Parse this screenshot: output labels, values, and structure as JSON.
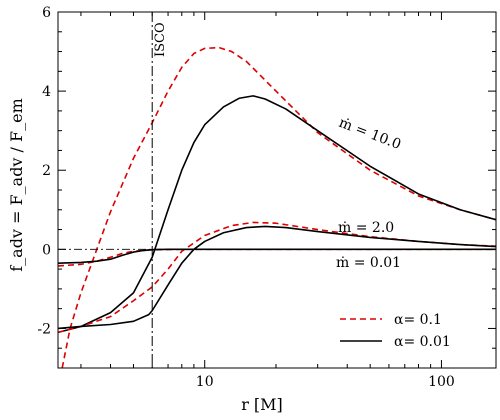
{
  "chart_data": {
    "type": "line",
    "xlabel": "r [M]",
    "ylabel": "f_adv = F_adv / F_em",
    "x_scale": "log",
    "xlim": [
      2.4,
      170
    ],
    "ylim": [
      -3,
      6
    ],
    "y_ticks": [
      -2,
      0,
      2,
      4,
      6
    ],
    "x_tick_labels": [
      {
        "value": 10,
        "label": "10"
      },
      {
        "value": 100,
        "label": "100"
      }
    ],
    "grid": false,
    "legend_position": "bottom-right",
    "legend": [
      {
        "label": "α= 0.1",
        "style": "dashed",
        "color": "#dd0000"
      },
      {
        "label": "α= 0.01",
        "style": "solid",
        "color": "#000000"
      }
    ],
    "vertical_line": {
      "x": 6,
      "label": "ISCO",
      "style": "dash-dot"
    },
    "annotations": [
      {
        "text": "ṁ = 10.0"
      },
      {
        "text": "ṁ = 2.0"
      },
      {
        "text": "ṁ = 0.01"
      }
    ],
    "series": [
      {
        "alpha": 0.1,
        "mdot": 10.0,
        "style": "dashed",
        "color": "#dd0000",
        "points": [
          [
            2.5,
            -3.0
          ],
          [
            2.7,
            -2.0
          ],
          [
            3.0,
            -1.1
          ],
          [
            3.5,
            0.0
          ],
          [
            4.0,
            0.95
          ],
          [
            5.0,
            2.3
          ],
          [
            6.0,
            3.2
          ],
          [
            7.0,
            4.0
          ],
          [
            8.0,
            4.6
          ],
          [
            9.0,
            4.95
          ],
          [
            10.0,
            5.08
          ],
          [
            11.5,
            5.1
          ],
          [
            13.0,
            5.0
          ],
          [
            15.0,
            4.75
          ],
          [
            20.0,
            4.0
          ],
          [
            30.0,
            2.95
          ],
          [
            50.0,
            2.0
          ],
          [
            80.0,
            1.35
          ],
          [
            120.0,
            1.0
          ],
          [
            170.0,
            0.75
          ]
        ]
      },
      {
        "alpha": 0.01,
        "mdot": 10.0,
        "style": "solid",
        "color": "#000000",
        "points": [
          [
            2.4,
            -2.1
          ],
          [
            3.0,
            -1.95
          ],
          [
            4.0,
            -1.6
          ],
          [
            5.0,
            -1.1
          ],
          [
            6.0,
            -0.2
          ],
          [
            7.0,
            1.0
          ],
          [
            8.0,
            2.0
          ],
          [
            9.0,
            2.7
          ],
          [
            10.0,
            3.15
          ],
          [
            12.0,
            3.6
          ],
          [
            14.0,
            3.82
          ],
          [
            16.0,
            3.88
          ],
          [
            18.0,
            3.8
          ],
          [
            22.0,
            3.55
          ],
          [
            30.0,
            3.0
          ],
          [
            50.0,
            2.1
          ],
          [
            80.0,
            1.4
          ],
          [
            120.0,
            1.0
          ],
          [
            170.0,
            0.75
          ]
        ]
      },
      {
        "alpha": 0.1,
        "mdot": 2.0,
        "style": "dashed",
        "color": "#dd0000",
        "points": [
          [
            2.4,
            -2.1
          ],
          [
            3.0,
            -1.95
          ],
          [
            4.0,
            -1.7
          ],
          [
            5.0,
            -1.3
          ],
          [
            6.0,
            -0.95
          ],
          [
            7.0,
            -0.5
          ],
          [
            8.0,
            -0.05
          ],
          [
            10.0,
            0.35
          ],
          [
            13.0,
            0.6
          ],
          [
            16.0,
            0.68
          ],
          [
            20.0,
            0.66
          ],
          [
            30.0,
            0.5
          ],
          [
            50.0,
            0.32
          ],
          [
            80.0,
            0.2
          ],
          [
            120.0,
            0.12
          ],
          [
            170.0,
            0.08
          ]
        ]
      },
      {
        "alpha": 0.01,
        "mdot": 2.0,
        "style": "solid",
        "color": "#000000",
        "points": [
          [
            2.4,
            -2.0
          ],
          [
            3.0,
            -1.95
          ],
          [
            4.0,
            -1.9
          ],
          [
            5.0,
            -1.82
          ],
          [
            5.8,
            -1.65
          ],
          [
            6.0,
            -1.55
          ],
          [
            7.0,
            -0.9
          ],
          [
            8.0,
            -0.35
          ],
          [
            9.0,
            0.0
          ],
          [
            10.0,
            0.2
          ],
          [
            12.0,
            0.42
          ],
          [
            15.0,
            0.55
          ],
          [
            18.0,
            0.58
          ],
          [
            22.0,
            0.55
          ],
          [
            30.0,
            0.45
          ],
          [
            50.0,
            0.3
          ],
          [
            80.0,
            0.2
          ],
          [
            120.0,
            0.12
          ],
          [
            170.0,
            0.07
          ]
        ]
      },
      {
        "alpha": 0.1,
        "mdot": 0.01,
        "style": "dashed",
        "color": "#dd0000",
        "points": [
          [
            2.4,
            -0.42
          ],
          [
            3.0,
            -0.38
          ],
          [
            3.5,
            -0.3
          ],
          [
            4.0,
            -0.2
          ],
          [
            4.5,
            -0.1
          ],
          [
            5.0,
            -0.05
          ],
          [
            6.0,
            -0.01
          ],
          [
            8.0,
            0.0
          ],
          [
            170.0,
            0.0
          ]
        ]
      },
      {
        "alpha": 0.01,
        "mdot": 0.01,
        "style": "solid",
        "color": "#000000",
        "points": [
          [
            2.4,
            -0.35
          ],
          [
            3.0,
            -0.33
          ],
          [
            3.5,
            -0.3
          ],
          [
            4.0,
            -0.25
          ],
          [
            4.5,
            -0.15
          ],
          [
            5.0,
            -0.07
          ],
          [
            5.5,
            -0.03
          ],
          [
            6.0,
            -0.01
          ],
          [
            7.0,
            0.0
          ],
          [
            170.0,
            0.0
          ]
        ]
      }
    ]
  }
}
